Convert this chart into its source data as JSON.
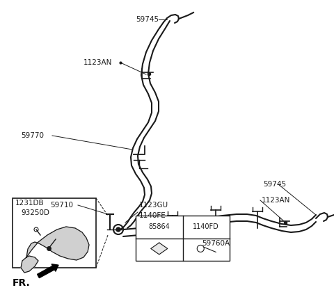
{
  "bg_color": "#ffffff",
  "line_color": "#1a1a1a",
  "label_color": "#1a1a1a",
  "figsize": [
    4.8,
    4.17
  ],
  "dpi": 100,
  "labels": {
    "59745_top": "59745",
    "1123AN_top": "1123AN",
    "59770": "59770",
    "59710": "59710",
    "1123GU": "1123GU",
    "1140FE": "1140FE",
    "1231DB": "1231DB",
    "93250D": "93250D",
    "59760A": "59760A",
    "59745_right": "59745",
    "1123AN_right": "1123AN",
    "85864": "85864",
    "1140FD": "1140FD",
    "FR": "FR."
  }
}
